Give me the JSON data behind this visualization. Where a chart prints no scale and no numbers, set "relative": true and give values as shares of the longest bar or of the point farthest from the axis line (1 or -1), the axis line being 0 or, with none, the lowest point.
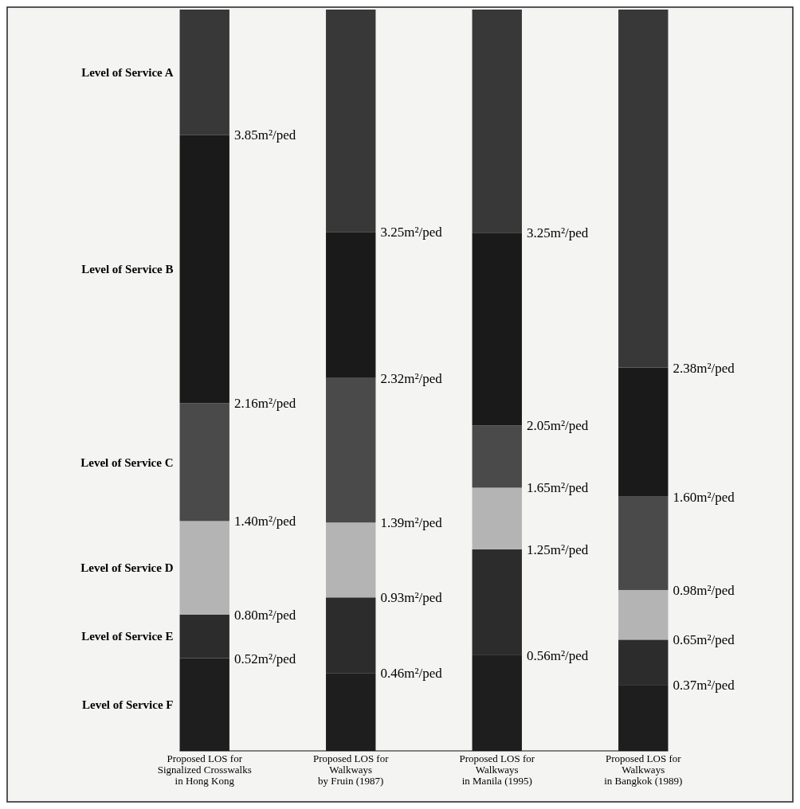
{
  "chart_data": {
    "type": "bar",
    "stacked": true,
    "relative": true,
    "legend": false,
    "categories": [
      "Proposed LOS for\nSignalized Crosswalks\nin Hong Kong",
      "Proposed LOS for\nWalkways\nby Fruin (1987)",
      "Proposed LOS for\nWalkways\nin Manila (1995)",
      "Proposed LOS for\nWalkways\nin Bangkok (1989)"
    ],
    "series": [
      {
        "name": "Level of Service F",
        "color": "#1e1e1e",
        "values": [
          0.125,
          0.105,
          0.129,
          0.089
        ]
      },
      {
        "name": "Level of Service E",
        "color": "#2c2c2c",
        "values": [
          0.059,
          0.102,
          0.143,
          0.061
        ]
      },
      {
        "name": "Level of Service D",
        "color": "#b4b4b4",
        "values": [
          0.126,
          0.101,
          0.083,
          0.067
        ]
      },
      {
        "name": "Level of Service C",
        "color": "#4a4a4a",
        "values": [
          0.159,
          0.195,
          0.084,
          0.126
        ]
      },
      {
        "name": "Level of Service B",
        "color": "#1a1a1a",
        "values": [
          0.362,
          0.197,
          0.26,
          0.174
        ]
      },
      {
        "name": "Level of Service A",
        "color": "#383838",
        "values": [
          0.169,
          0.3,
          0.301,
          0.483
        ]
      }
    ],
    "annotations": [
      {
        "text": "0.52m²/ped",
        "x": "Proposed LOS for\nSignalized Crosswalks\nin Hong Kong",
        "y": 0.125
      },
      {
        "text": "0.80m²/ped",
        "x": "Proposed LOS for\nSignalized Crosswalks\nin Hong Kong",
        "y": 0.184
      },
      {
        "text": "1.40m²/ped",
        "x": "Proposed LOS for\nSignalized Crosswalks\nin Hong Kong",
        "y": 0.31
      },
      {
        "text": "2.16m²/ped",
        "x": "Proposed LOS for\nSignalized Crosswalks\nin Hong Kong",
        "y": 0.469
      },
      {
        "text": "3.85m²/ped",
        "x": "Proposed LOS for\nSignalized Crosswalks\nin Hong Kong",
        "y": 0.831
      },
      {
        "text": "0.46m²/ped",
        "x": "Proposed LOS for\nWalkways\nby Fruin (1987)",
        "y": 0.105
      },
      {
        "text": "0.93m²/ped",
        "x": "Proposed LOS for\nWalkways\nby Fruin (1987)",
        "y": 0.207
      },
      {
        "text": "1.39m²/ped",
        "x": "Proposed LOS for\nWalkways\nby Fruin (1987)",
        "y": 0.308
      },
      {
        "text": "2.32m²/ped",
        "x": "Proposed LOS for\nWalkways\nby Fruin (1987)",
        "y": 0.503
      },
      {
        "text": "3.25m²/ped",
        "x": "Proposed LOS for\nWalkways\nby Fruin (1987)",
        "y": 0.7
      },
      {
        "text": "0.56m²/ped",
        "x": "Proposed LOS for\nWalkways\nin Manila (1995)",
        "y": 0.129
      },
      {
        "text": "1.25m²/ped",
        "x": "Proposed LOS for\nWalkways\nin Manila (1995)",
        "y": 0.272
      },
      {
        "text": "1.65m²/ped",
        "x": "Proposed LOS for\nWalkways\nin Manila (1995)",
        "y": 0.355
      },
      {
        "text": "2.05m²/ped",
        "x": "Proposed LOS for\nWalkways\nin Manila (1995)",
        "y": 0.439
      },
      {
        "text": "3.25m²/ped",
        "x": "Proposed LOS for\nWalkways\nin Manila (1995)",
        "y": 0.699
      },
      {
        "text": "0.37m²/ped",
        "x": "Proposed LOS for\nWalkways\nin Bangkok (1989)",
        "y": 0.089
      },
      {
        "text": "0.65m²/ped",
        "x": "Proposed LOS for\nWalkways\nin Bangkok (1989)",
        "y": 0.15
      },
      {
        "text": "0.98m²/ped",
        "x": "Proposed LOS for\nWalkways\nin Bangkok (1989)",
        "y": 0.217
      },
      {
        "text": "1.60m²/ped",
        "x": "Proposed LOS for\nWalkways\nin Bangkok (1989)",
        "y": 0.343
      },
      {
        "text": "2.38m²/ped",
        "x": "Proposed LOS for\nWalkways\nin Bangkok (1989)",
        "y": 0.517
      }
    ]
  }
}
